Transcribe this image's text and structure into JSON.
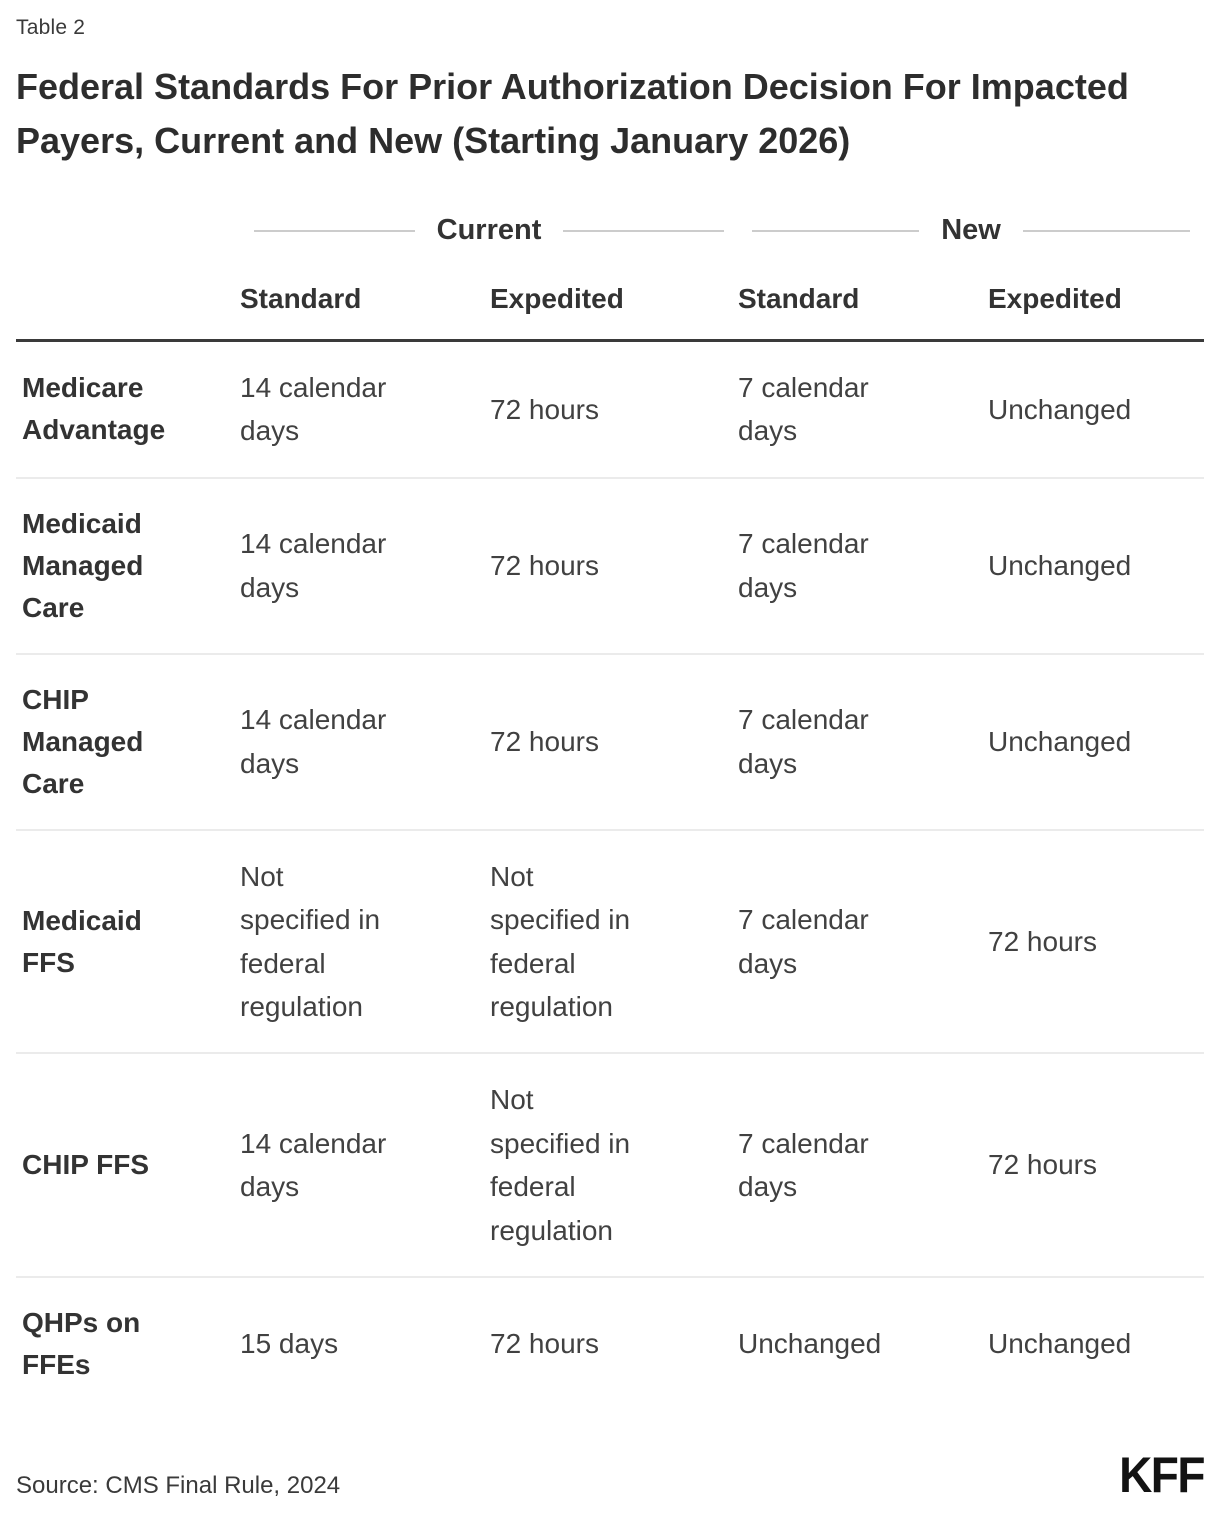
{
  "page": {
    "table_label": "Table 2",
    "title": "Federal Standards For Prior Authorization Decision For Impacted Payers, Current and New (Starting January 2026)"
  },
  "table": {
    "groups": [
      {
        "label": "Current"
      },
      {
        "label": "New"
      }
    ],
    "columns": [
      {
        "label": "Standard"
      },
      {
        "label": "Expedited"
      },
      {
        "label": "Standard"
      },
      {
        "label": "Expedited"
      }
    ],
    "rows": [
      {
        "label": "Medicare\nAdvantage",
        "cells": [
          "14 calendar\ndays",
          "72 hours",
          "7 calendar\ndays",
          "Unchanged"
        ]
      },
      {
        "label": "Medicaid\nManaged\nCare",
        "cells": [
          "14 calendar\ndays",
          "72 hours",
          "7 calendar\ndays",
          "Unchanged"
        ]
      },
      {
        "label": "CHIP\nManaged\nCare",
        "cells": [
          "14 calendar\ndays",
          "72 hours",
          "7 calendar\ndays",
          "Unchanged"
        ]
      },
      {
        "label": "Medicaid\nFFS",
        "cells": [
          "Not\nspecified in\nfederal\nregulation",
          "Not\nspecified in\nfederal\nregulation",
          "7 calendar\ndays",
          "72 hours"
        ]
      },
      {
        "label": "CHIP FFS",
        "cells": [
          "14 calendar\ndays",
          "Not\nspecified in\nfederal\nregulation",
          "7 calendar\ndays",
          "72 hours"
        ]
      },
      {
        "label": "QHPs on\nFFEs",
        "cells": [
          "15 days",
          "72 hours",
          "Unchanged",
          "Unchanged"
        ]
      }
    ]
  },
  "footer": {
    "source": "Source: CMS Final Rule, 2024",
    "logo": "KFF"
  },
  "colors": {
    "background": "#ffffff",
    "text_dark": "#333333",
    "title_text": "#2d2d2d",
    "cell_text": "#414141",
    "rule_light": "#ebebeb",
    "rule_heavy": "#3a3a3a",
    "group_line": "#cccccc",
    "logo": "#131313"
  },
  "chart_data": {
    "type": "table",
    "title": "Federal Standards For Prior Authorization Decision For Impacted Payers, Current and New (Starting January 2026)",
    "column_groups": [
      "Current",
      "New"
    ],
    "columns": [
      "Current Standard",
      "Current Expedited",
      "New Standard",
      "New Expedited"
    ],
    "rows": [
      "Medicare Advantage",
      "Medicaid Managed Care",
      "CHIP Managed Care",
      "Medicaid FFS",
      "CHIP FFS",
      "QHPs on FFEs"
    ],
    "values": [
      [
        "14 calendar days",
        "72 hours",
        "7 calendar days",
        "Unchanged"
      ],
      [
        "14 calendar days",
        "72 hours",
        "7 calendar days",
        "Unchanged"
      ],
      [
        "14 calendar days",
        "72 hours",
        "7 calendar days",
        "Unchanged"
      ],
      [
        "Not specified in federal regulation",
        "Not specified in federal regulation",
        "7 calendar days",
        "72 hours"
      ],
      [
        "14 calendar days",
        "Not specified in federal regulation",
        "7 calendar days",
        "72 hours"
      ],
      [
        "15 days",
        "72 hours",
        "Unchanged",
        "Unchanged"
      ]
    ],
    "source": "Source: CMS Final Rule, 2024"
  }
}
